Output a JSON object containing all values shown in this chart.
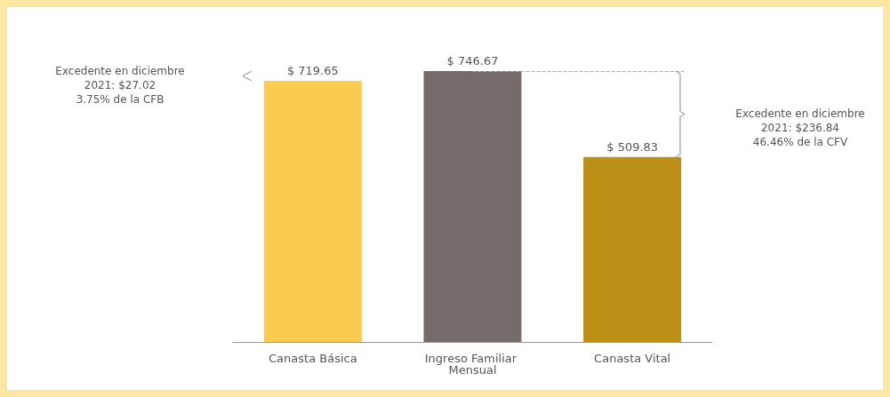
{
  "chart_data": {
    "type": "bar",
    "categories": [
      "Canasta Básica",
      "Ingreso Familiar Mensual",
      "Canasta Vital"
    ],
    "values": [
      719.65,
      746.67,
      509.83
    ],
    "colors": [
      "#fbcb4f",
      "#756c6a",
      "#bc9016"
    ],
    "value_labels": [
      "$ 719.65",
      "$ 746.67",
      "$ 509.83"
    ],
    "ref_lines": [
      {
        "axis": "y",
        "value": 746.67,
        "line_style": "dashed",
        "color": "#aaaaaa"
      }
    ],
    "annotations": [
      "Excedente en diciembre\n2021: $27.02\n3.75% de la CFB",
      "Excedente en diciembre\n2021: $236.84\n46.46% de la CFV"
    ]
  }
}
